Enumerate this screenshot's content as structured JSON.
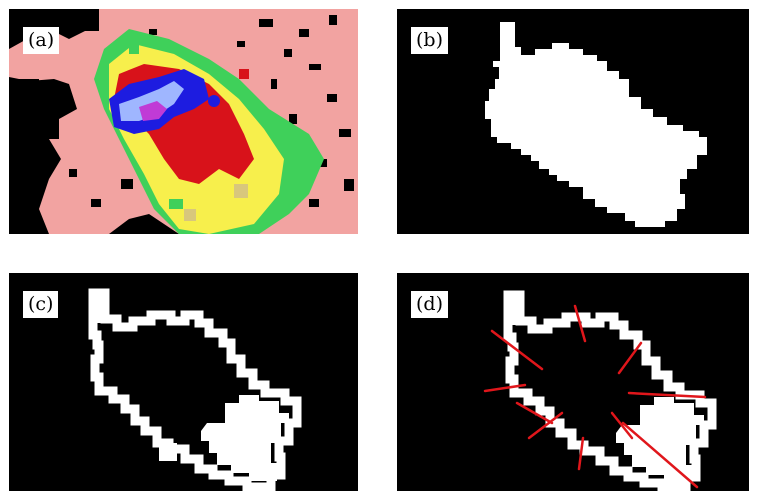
{
  "figure": {
    "panels": [
      {
        "id": "a",
        "label": "(a)",
        "content": "radar-reflectivity-heatmap"
      },
      {
        "id": "b",
        "label": "(b)",
        "content": "binary-mask"
      },
      {
        "id": "c",
        "label": "(c)",
        "content": "mask-boundary"
      },
      {
        "id": "d",
        "label": "(d)",
        "content": "boundary-with-normals"
      }
    ],
    "colors": {
      "background": "#000000",
      "mask": "#ffffff",
      "normals": "#e0161b",
      "heat_low": "#f2a3a1",
      "heat_green": "#3fd05a",
      "heat_yellow": "#f7ef4c",
      "heat_red": "#d8121a",
      "heat_blue": "#1d1ce0",
      "heat_light_blue": "#9fb6ff",
      "heat_magenta": "#c03bd6"
    }
  }
}
